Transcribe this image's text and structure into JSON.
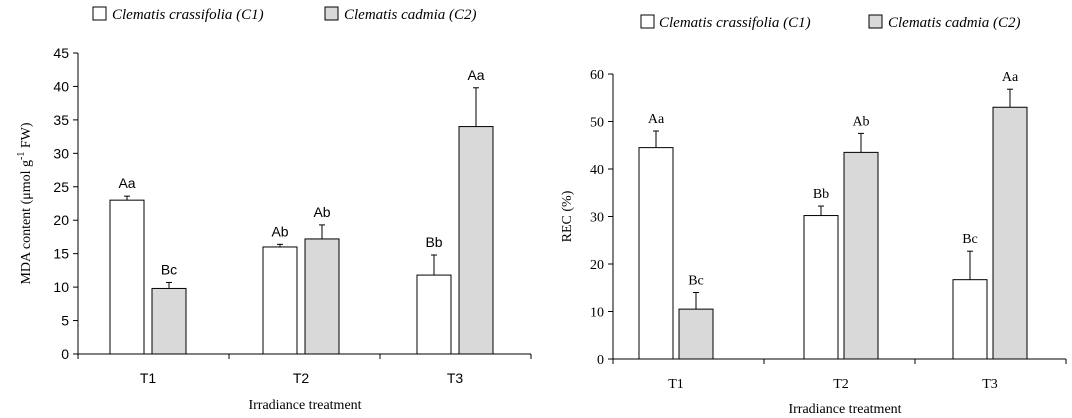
{
  "chart_data": [
    {
      "type": "bar",
      "categories": [
        "T1",
        "T2",
        "T3"
      ],
      "series": [
        {
          "name": "Clematis crassifolia (C1)",
          "values": [
            23.0,
            16.0,
            11.8
          ],
          "errors": [
            0.6,
            0.4,
            3.0
          ],
          "labels": [
            "Aa",
            "Ab",
            "Bb"
          ],
          "color": "#ffffff"
        },
        {
          "name": "Clematis cadmia (C2)",
          "values": [
            9.8,
            17.2,
            34.0
          ],
          "errors": [
            0.9,
            2.1,
            5.8
          ],
          "labels": [
            "Bc",
            "Ab",
            "Aa"
          ],
          "color": "#d9d9d9"
        }
      ],
      "xlabel": "Irradiance treatment",
      "ylabel": "MDA content (μmol g",
      "ylabel_sup": "-1",
      "ylabel_tail": " FW)",
      "ylim": [
        0,
        45
      ],
      "yticks": [
        "0",
        "5",
        "10",
        "15",
        "20",
        "25",
        "30",
        "35",
        "40",
        "45"
      ],
      "legend": "top",
      "grid": false
    },
    {
      "type": "bar",
      "categories": [
        "T1",
        "T2",
        "T3"
      ],
      "series": [
        {
          "name": "Clematis crassifolia (C1)",
          "values": [
            44.5,
            30.2,
            16.7
          ],
          "errors": [
            3.5,
            2.0,
            6.0
          ],
          "labels": [
            "Aa",
            "Bb",
            "Bc"
          ],
          "color": "#ffffff"
        },
        {
          "name": "Clematis cadmia (C2)",
          "values": [
            10.5,
            43.5,
            53.0
          ],
          "errors": [
            3.5,
            4.0,
            3.8
          ],
          "labels": [
            "Bc",
            "Ab",
            "Aa"
          ],
          "color": "#d9d9d9"
        }
      ],
      "xlabel": "Irradiance treatment",
      "ylabel": "REC (%)",
      "ylabel_sup": "",
      "ylabel_tail": "",
      "ylim": [
        0,
        60
      ],
      "yticks": [
        "0",
        "10",
        "20",
        "30",
        "40",
        "50",
        "60"
      ],
      "legend": "top",
      "grid": false
    }
  ]
}
